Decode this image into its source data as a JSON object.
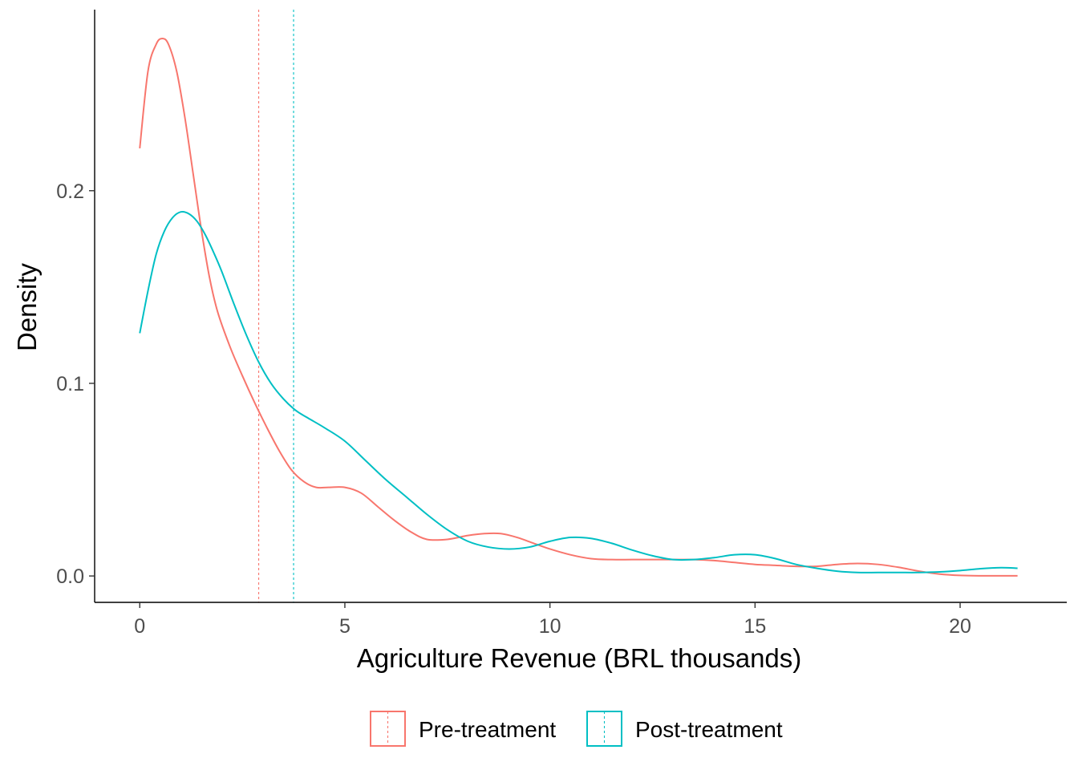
{
  "chart_data": {
    "type": "line",
    "title": "",
    "xlabel": "Agriculture Revenue (BRL thousands)",
    "ylabel": "Density",
    "xlim": [
      -1.1,
      22.6
    ],
    "ylim": [
      -0.0137,
      0.294
    ],
    "x_ticks": [
      0,
      5,
      10,
      15,
      20
    ],
    "x_tick_labels": [
      "0",
      "5",
      "10",
      "15",
      "20"
    ],
    "y_ticks": [
      0.0,
      0.1,
      0.2
    ],
    "y_tick_labels": [
      "0.0",
      "0.1",
      "0.2"
    ],
    "grid": false,
    "legend_position": "bottom",
    "series": [
      {
        "name": "Pre-treatment",
        "color": "#F8766D",
        "mean": 2.9,
        "x": [
          0,
          0.2,
          0.4,
          0.55,
          0.7,
          0.9,
          1.1,
          1.3,
          1.5,
          1.7,
          1.9,
          2.2,
          2.5,
          2.8,
          3.1,
          3.4,
          3.7,
          4.0,
          4.3,
          4.6,
          5.0,
          5.4,
          5.8,
          6.2,
          6.6,
          7.0,
          7.5,
          8.0,
          8.4,
          8.8,
          9.2,
          9.6,
          10.0,
          10.5,
          11.0,
          11.5,
          12.0,
          12.5,
          13.0,
          13.5,
          14.0,
          14.5,
          15.0,
          15.5,
          16.0,
          16.5,
          17.0,
          17.5,
          18.0,
          18.5,
          19.0,
          19.5,
          20.0,
          20.5,
          21.0,
          21.4
        ],
        "y": [
          0.222,
          0.262,
          0.276,
          0.279,
          0.276,
          0.262,
          0.238,
          0.209,
          0.18,
          0.155,
          0.137,
          0.119,
          0.104,
          0.09,
          0.077,
          0.065,
          0.055,
          0.049,
          0.046,
          0.046,
          0.046,
          0.043,
          0.036,
          0.029,
          0.023,
          0.019,
          0.019,
          0.021,
          0.022,
          0.022,
          0.02,
          0.017,
          0.014,
          0.011,
          0.009,
          0.0085,
          0.0085,
          0.0085,
          0.0085,
          0.0085,
          0.008,
          0.007,
          0.006,
          0.0055,
          0.005,
          0.005,
          0.006,
          0.0065,
          0.006,
          0.0045,
          0.0025,
          0.001,
          0.0003,
          0.0001,
          0.0001,
          0.0001
        ]
      },
      {
        "name": "Post-treatment",
        "color": "#00BFC4",
        "mean": 3.75,
        "x": [
          0,
          0.2,
          0.4,
          0.6,
          0.8,
          1.0,
          1.2,
          1.4,
          1.6,
          1.8,
          2.0,
          2.3,
          2.6,
          2.9,
          3.2,
          3.5,
          3.8,
          4.1,
          4.5,
          5.0,
          5.5,
          6.0,
          6.5,
          7.0,
          7.5,
          8.0,
          8.5,
          9.0,
          9.5,
          10.0,
          10.5,
          11.0,
          11.5,
          12.0,
          12.5,
          13.0,
          13.5,
          14.0,
          14.5,
          15.0,
          15.5,
          16.0,
          16.5,
          17.0,
          17.5,
          18.0,
          18.5,
          19.0,
          19.5,
          20.0,
          20.5,
          21.0,
          21.4
        ],
        "y": [
          0.126,
          0.148,
          0.167,
          0.179,
          0.186,
          0.189,
          0.188,
          0.184,
          0.177,
          0.168,
          0.158,
          0.141,
          0.125,
          0.111,
          0.1,
          0.092,
          0.086,
          0.082,
          0.077,
          0.07,
          0.06,
          0.05,
          0.041,
          0.032,
          0.024,
          0.018,
          0.015,
          0.014,
          0.015,
          0.018,
          0.02,
          0.0195,
          0.017,
          0.0135,
          0.0105,
          0.0085,
          0.0085,
          0.0095,
          0.011,
          0.011,
          0.009,
          0.006,
          0.004,
          0.0025,
          0.0018,
          0.0018,
          0.0018,
          0.0018,
          0.0021,
          0.0028,
          0.0038,
          0.0043,
          0.004
        ]
      }
    ]
  }
}
